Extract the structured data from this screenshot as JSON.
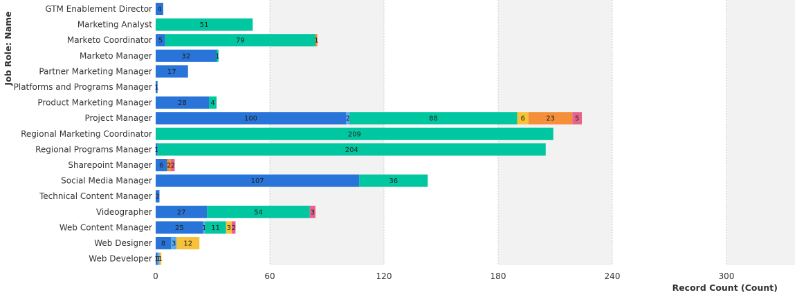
{
  "colors": {
    "background": "#ffffff",
    "band": "#f2f2f2",
    "grid": "#cfcfcf"
  },
  "chart_data": {
    "type": "bar",
    "orientation": "horizontal",
    "stacked": true,
    "xlabel": "Record Count (Count)",
    "ylabel": "Job Role: Name",
    "xlim": [
      0,
      336
    ],
    "x_ticks": [
      0,
      60,
      120,
      180,
      240,
      300
    ],
    "grid": true,
    "legend": "none",
    "segment_colors": [
      "#2874d8",
      "#5aaaf0",
      "#00c7a0",
      "#f8c13a",
      "#f58f3a",
      "#e8638c"
    ],
    "categories": [
      "GTM Enablement Director",
      "Marketing Analyst",
      "Marketo Coordinator",
      "Marketo Manager",
      "Partner Marketing Manager",
      "Platforms and Programs Manager",
      "Product Marketing Manager",
      "Project Manager",
      "Regional Marketing Coordinator",
      "Regional Programs Manager",
      "Sharepoint Manager",
      "Social Media Manager",
      "Technical Content Manager",
      "Videographer",
      "Web Content Manager",
      "Web Designer",
      "Web Developer"
    ],
    "bars": [
      [
        [
          0,
          4
        ]
      ],
      [
        [
          2,
          51
        ]
      ],
      [
        [
          0,
          5
        ],
        [
          2,
          79
        ],
        [
          4,
          1
        ]
      ],
      [
        [
          0,
          32
        ],
        [
          2,
          1
        ]
      ],
      [
        [
          0,
          17
        ]
      ],
      [
        [
          0,
          1
        ]
      ],
      [
        [
          0,
          28
        ],
        [
          2,
          4
        ]
      ],
      [
        [
          0,
          100
        ],
        [
          1,
          2
        ],
        [
          2,
          88
        ],
        [
          3,
          6
        ],
        [
          4,
          23
        ],
        [
          5,
          5
        ]
      ],
      [
        [
          2,
          209
        ]
      ],
      [
        [
          0,
          1
        ],
        [
          2,
          204
        ]
      ],
      [
        [
          0,
          6
        ],
        [
          4,
          2
        ],
        [
          5,
          2
        ]
      ],
      [
        [
          0,
          107
        ],
        [
          2,
          36
        ]
      ],
      [
        [
          0,
          2
        ]
      ],
      [
        [
          0,
          27
        ],
        [
          2,
          54
        ],
        [
          5,
          3
        ]
      ],
      [
        [
          0,
          25
        ],
        [
          1,
          1
        ],
        [
          2,
          11
        ],
        [
          3,
          3
        ],
        [
          5,
          2
        ]
      ],
      [
        [
          0,
          8
        ],
        [
          1,
          3
        ],
        [
          3,
          12
        ]
      ],
      [
        [
          0,
          1
        ],
        [
          1,
          1
        ],
        [
          3,
          1
        ]
      ]
    ]
  }
}
